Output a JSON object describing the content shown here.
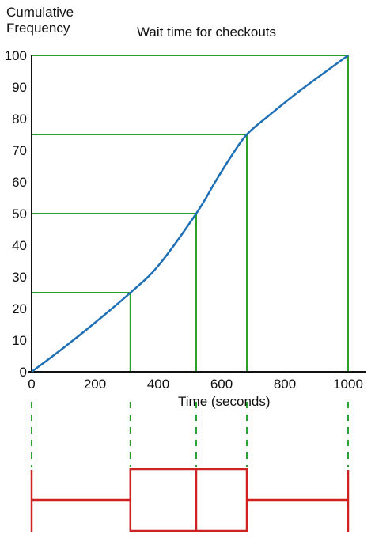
{
  "chart_data": {
    "type": "line",
    "title": "Wait time for checkouts",
    "ylabel": "Cumulative\nFrequency",
    "xlabel": "Time (seconds)",
    "xlim": [
      0,
      1000
    ],
    "ylim": [
      0,
      100
    ],
    "x_ticks": [
      "0",
      "200",
      "400",
      "600",
      "800",
      "1000"
    ],
    "y_ticks": [
      "0",
      "10",
      "20",
      "30",
      "40",
      "50",
      "60",
      "70",
      "80",
      "90",
      "100"
    ],
    "series": [
      {
        "color": "#1f6fb5",
        "x": [
          0,
          100,
          200,
          312,
          400,
          520,
          580,
          630,
          680,
          750,
          850,
          1000
        ],
        "y": [
          0,
          7.5,
          15.5,
          25,
          33.5,
          50,
          60,
          68,
          75,
          81,
          89,
          100
        ]
      }
    ],
    "reference_lines": [
      {
        "cumulative_frequency": 25,
        "time": 312
      },
      {
        "cumulative_frequency": 50,
        "time": 520
      },
      {
        "cumulative_frequency": 75,
        "time": 680
      },
      {
        "cumulative_frequency": 100,
        "time": 1000
      }
    ],
    "reference_color": "#2ca02c",
    "boxplot": {
      "min": 0,
      "q1": 312,
      "median": 520,
      "q3": 680,
      "max": 1000,
      "color": "#cc2222"
    }
  }
}
